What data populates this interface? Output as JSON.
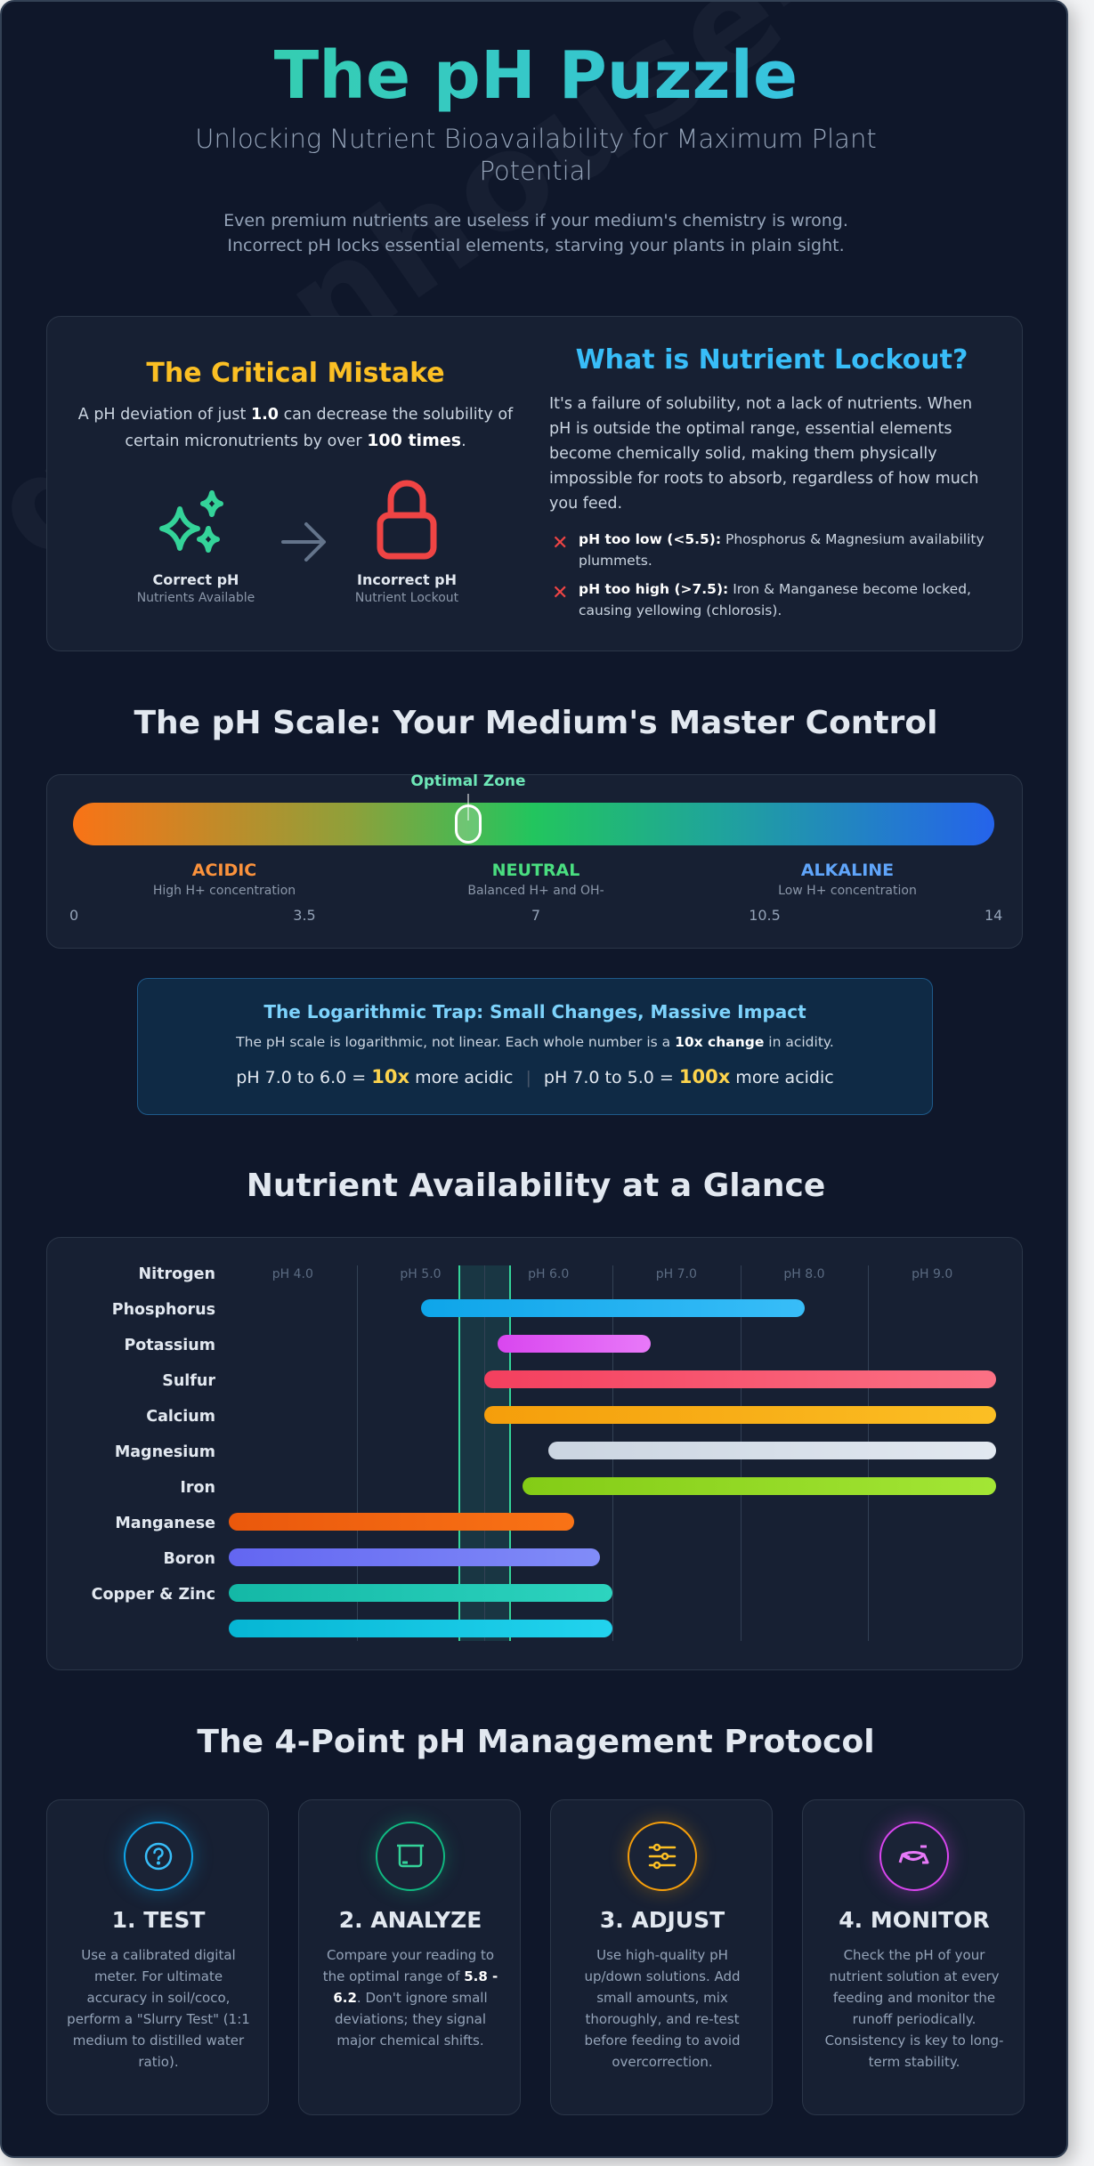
{
  "header": {
    "title": "The pH Puzzle",
    "subtitle": "Unlocking Nutrient Bioavailability for Maximum Plant Potential",
    "intro_line1": "Even premium nutrients are useless if your medium's chemistry is wrong.",
    "intro_line2": "Incorrect pH locks essential elements, starving your plants in plain sight."
  },
  "watermark": "greenhouse-feeding.c",
  "critical": {
    "title": "The Critical Mistake",
    "text_a": "A pH deviation of just ",
    "text_b": "1.0",
    "text_c": " can decrease the solubility of certain micronutrients by over ",
    "text_d": "100 times",
    "text_e": ".",
    "correct_label": "Correct pH",
    "correct_sub": "Nutrients Available",
    "incorrect_label": "Incorrect pH",
    "incorrect_sub": "Nutrient Lockout"
  },
  "lockout": {
    "title": "What is Nutrient Lockout?",
    "text": "It's a failure of solubility, not a lack of nutrients. When pH is outside the optimal range, essential elements become chemically solid, making them physically impossible for roots to absorb, regardless of how much you feed.",
    "bullets": [
      {
        "bold": "pH too low (<5.5):",
        "text": " Phosphorus & Magnesium availability plummets."
      },
      {
        "bold": "pH too high (>7.5):",
        "text": " Iron & Manganese become locked, causing yellowing (chlorosis)."
      }
    ],
    "bullet_icon": "✕"
  },
  "scale": {
    "heading": "The pH Scale: Your Medium's Master Control",
    "optimal_label": "Optimal Zone",
    "zones": [
      {
        "title": "ACIDIC",
        "sub": "High H+ concentration",
        "color": "#fb923c"
      },
      {
        "title": "NEUTRAL",
        "sub": "Balanced H+ and OH-",
        "color": "#4ade80"
      },
      {
        "title": "ALKALINE",
        "sub": "Low H+ concentration",
        "color": "#60a5fa"
      }
    ],
    "ticks": [
      "0",
      "3.5",
      "7",
      "10.5",
      "14"
    ]
  },
  "log": {
    "title": "The Logarithmic Trap: Small Changes, Massive Impact",
    "text_a": "The pH scale is logarithmic, not linear. Each whole number is a ",
    "text_b": "10x change",
    "text_c": " in acidity.",
    "eq1_a": "pH 7.0 to 6.0 = ",
    "eq1_b": "10x",
    "eq1_c": " more acidic",
    "sep": "|",
    "eq2_a": "pH 7.0 to 5.0 = ",
    "eq2_b": "100x",
    "eq2_c": " more acidic"
  },
  "nutrients": {
    "heading": "Nutrient Availability at a Glance"
  },
  "chart_data": {
    "type": "bar",
    "orientation": "horizontal-range",
    "title": "Nutrient Availability at a Glance",
    "xlabel": "pH",
    "xlim": [
      4.0,
      10.0
    ],
    "axis_labels": [
      "pH 4.0",
      "pH 5.0",
      "pH 6.0",
      "pH 7.0",
      "pH 8.0",
      "pH 9.0"
    ],
    "optimal_zone": [
      5.8,
      6.2
    ],
    "grid": true,
    "row_labels": [
      "Nitrogen",
      "Phosphorus",
      "Potassium",
      "Sulfur",
      "Calcium",
      "Magnesium",
      "Iron",
      "Manganese",
      "Boron",
      "Copper & Zinc"
    ],
    "bars": [
      {
        "start": 5.5,
        "end": 8.5,
        "from": "#0ea5e9",
        "to": "#38bdf8"
      },
      {
        "start": 6.1,
        "end": 7.3,
        "from": "#d946ef",
        "to": "#e879f9"
      },
      {
        "start": 6.0,
        "end": 10.0,
        "from": "#f43f5e",
        "to": "#fb7185"
      },
      {
        "start": 6.0,
        "end": 10.0,
        "from": "#f59e0b",
        "to": "#fbbf24"
      },
      {
        "start": 6.5,
        "end": 10.0,
        "from": "#cbd5e1",
        "to": "#e2e8f0"
      },
      {
        "start": 6.3,
        "end": 10.0,
        "from": "#84cc16",
        "to": "#a3e635"
      },
      {
        "start": 4.0,
        "end": 6.7,
        "from": "#ea580c",
        "to": "#f97316"
      },
      {
        "start": 4.0,
        "end": 6.9,
        "from": "#6366f1",
        "to": "#818cf8"
      },
      {
        "start": 4.0,
        "end": 7.0,
        "from": "#14b8a6",
        "to": "#2dd4bf"
      },
      {
        "start": 4.0,
        "end": 7.0,
        "from": "#06b6d4",
        "to": "#22d3ee"
      }
    ]
  },
  "protocol": {
    "heading": "The 4-Point pH Management Protocol",
    "cards": [
      {
        "title": "1. TEST",
        "icon": "question-icon",
        "color": "#0ea5e9",
        "text": "Use a calibrated digital meter. For ultimate accuracy in soil/coco, perform a \"Slurry Test\" (1:1 medium to distilled water ratio)."
      },
      {
        "title": "2. ANALYZE",
        "icon": "beaker-icon",
        "color": "#10b981",
        "text_a": "Compare your reading to the optimal range of ",
        "text_b": "5.8 - 6.2",
        "text_c": ". Don't ignore small deviations; they signal major chemical shifts."
      },
      {
        "title": "3. ADJUST",
        "icon": "sliders-icon",
        "color": "#f59e0b",
        "text": "Use high-quality pH up/down solutions. Add small amounts, mix thoroughly, and re-test before feeding to avoid overcorrection."
      },
      {
        "title": "4. MONITOR",
        "icon": "monitor-icon",
        "color": "#d946ef",
        "text": "Check the pH of your nutrient solution at every feeding and monitor the runoff periodically. Consistency is key to long-term stability."
      }
    ]
  }
}
